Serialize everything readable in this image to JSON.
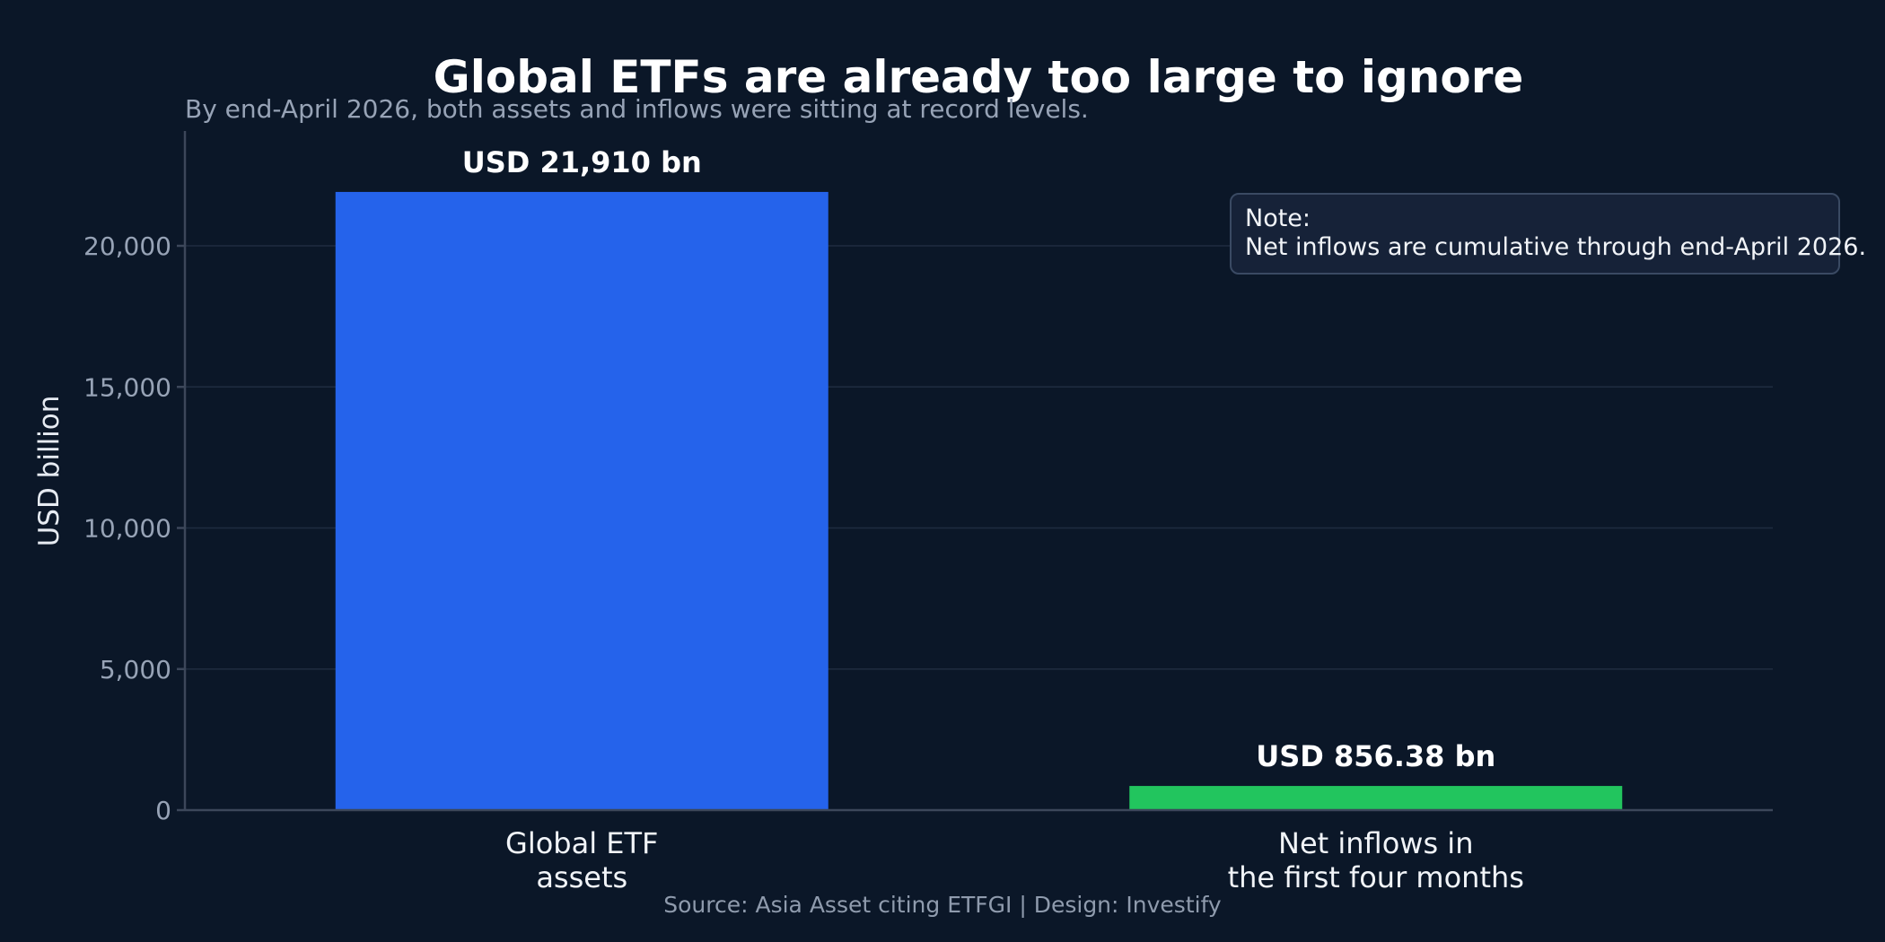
{
  "chart_data": {
    "type": "bar",
    "title": "Global ETFs are already too large to ignore",
    "subtitle": "By end-April 2026, both assets and inflows were sitting at record levels.",
    "ylabel": "USD billion",
    "xlabel": "",
    "ylim": [
      0,
      24000
    ],
    "yticks": [
      {
        "value": 0,
        "label": "0"
      },
      {
        "value": 5000,
        "label": "5,000"
      },
      {
        "value": 10000,
        "label": "10,000"
      },
      {
        "value": 15000,
        "label": "15,000"
      },
      {
        "value": 20000,
        "label": "20,000"
      }
    ],
    "grid": true,
    "bars": [
      {
        "category_lines": [
          "Global ETF",
          "assets"
        ],
        "value": 21910,
        "data_label": "USD 21,910 bn",
        "color": "#2563eb"
      },
      {
        "category_lines": [
          "Net inflows in",
          "the first four months"
        ],
        "value": 856.38,
        "data_label": "USD 856.38 bn",
        "color": "#22c55e"
      }
    ],
    "annotation": {
      "heading": "Note:",
      "text": "Net inflows are cumulative through end-April 2026.",
      "placement": "top-right"
    },
    "source": "Source: Asia Asset citing ETFGI | Design: Investify"
  },
  "colors": {
    "background": "#0b1728",
    "note_background": "#162238",
    "note_border": "#3a4a63"
  }
}
